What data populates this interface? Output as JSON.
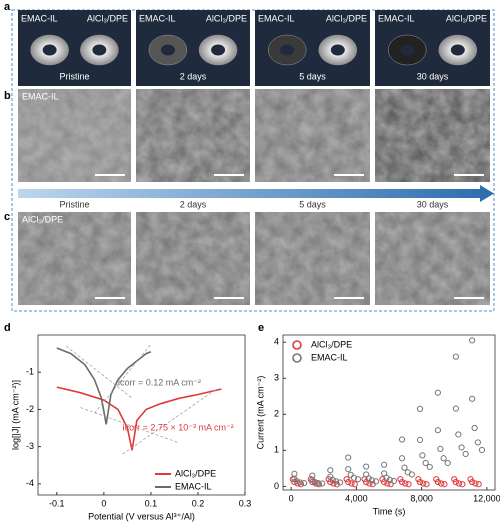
{
  "panel_labels": [
    "a",
    "b",
    "c",
    "d",
    "e"
  ],
  "panel_a": {
    "columns": [
      {
        "left": "EMAC-IL",
        "right": "AlCl₃/DPE",
        "caption": "Pristine"
      },
      {
        "left": "EMAC-IL",
        "right": "AlCl₃/DPE",
        "caption": "2 days"
      },
      {
        "left": "EMAC-IL",
        "right": "AlCl₃/DPE",
        "caption": "5 days"
      },
      {
        "left": "EMAC-IL",
        "right": "AlCl₃/DPE",
        "caption": "30 days"
      }
    ]
  },
  "panel_b": {
    "label": "EMAC-IL"
  },
  "timeline": [
    "Pristine",
    "2 days",
    "5 days",
    "30 days"
  ],
  "panel_c": {
    "label": "AlCl₃/DPE"
  },
  "chart_data": [
    {
      "type": "line",
      "xlabel": "Potential (V versus Al³⁺/Al)",
      "ylabel": "log[|J| (mA cm⁻²)]",
      "xlim": [
        -0.14,
        0.3
      ],
      "xticks": [
        -0.1,
        0,
        0.1,
        0.2,
        0.3
      ],
      "ylim": [
        -4.3,
        0
      ],
      "yticks": [
        -1,
        -2,
        -3,
        -4
      ],
      "legend": "lower right",
      "annotations": [
        "icorr = 0.12 mA cm⁻²",
        "icorr = 2.75 × 10⁻³ mA cm⁻²"
      ],
      "series": [
        {
          "name": "AlCl₃/DPE",
          "color": "#e0383b",
          "x": [
            -0.1,
            -0.05,
            0,
            0.03,
            0.05,
            0.06,
            0.07,
            0.09,
            0.12,
            0.16,
            0.2,
            0.25
          ],
          "values": [
            -1.4,
            -1.55,
            -1.75,
            -2.0,
            -2.5,
            -3.1,
            -2.3,
            -2.0,
            -1.85,
            -1.7,
            -1.6,
            -1.45
          ]
        },
        {
          "name": "EMAC-IL",
          "color": "#6b6b6b",
          "x": [
            -0.1,
            -0.07,
            -0.04,
            -0.02,
            -0.005,
            0.005,
            0.015,
            0.03,
            0.05,
            0.07,
            0.09,
            0.1
          ],
          "values": [
            -0.35,
            -0.5,
            -0.8,
            -1.2,
            -1.7,
            -2.4,
            -1.6,
            -1.2,
            -0.9,
            -0.7,
            -0.5,
            -0.45
          ]
        }
      ]
    },
    {
      "type": "scatter",
      "xlabel": "Time (s)",
      "ylabel": "Current (mA cm⁻²)",
      "xlim": [
        -500,
        12500
      ],
      "xticks": [
        0,
        {
          "value": 4000,
          "label": "4,000"
        },
        {
          "value": 8000,
          "label": "8,000"
        },
        {
          "value": 12000,
          "label": "12,000"
        }
      ],
      "ylim": [
        -0.1,
        4.2
      ],
      "yticks": [
        0,
        1,
        2,
        3,
        4
      ],
      "legend": "upper left",
      "series": [
        {
          "name": "AlCl₃/DPE",
          "color": "#e0383b",
          "x": [
            100,
            200,
            400,
            600,
            1200,
            1300,
            1500,
            1700,
            2300,
            2400,
            2600,
            2800,
            3400,
            3500,
            3700,
            3900,
            4500,
            4600,
            4800,
            5000,
            5600,
            5700,
            5900,
            6100,
            6700,
            6800,
            7000,
            7200,
            7800,
            7900,
            8100,
            8300,
            8900,
            9000,
            9200,
            9400,
            10000,
            10100,
            10300,
            10500,
            11000,
            11100,
            11300,
            11500
          ],
          "values": [
            0.2,
            0.12,
            0.08,
            0.06,
            0.2,
            0.12,
            0.08,
            0.06,
            0.2,
            0.12,
            0.08,
            0.06,
            0.2,
            0.12,
            0.08,
            0.06,
            0.2,
            0.12,
            0.08,
            0.06,
            0.2,
            0.12,
            0.08,
            0.06,
            0.2,
            0.12,
            0.08,
            0.06,
            0.2,
            0.12,
            0.08,
            0.06,
            0.2,
            0.12,
            0.08,
            0.06,
            0.2,
            0.12,
            0.08,
            0.06,
            0.2,
            0.12,
            0.08,
            0.06
          ]
        },
        {
          "name": "EMAC-IL",
          "color": "#777777",
          "x": [
            200,
            200,
            350,
            550,
            800,
            1300,
            1300,
            1450,
            1650,
            1900,
            2400,
            2400,
            2550,
            2750,
            3000,
            3500,
            3500,
            3650,
            3850,
            4100,
            4600,
            4600,
            4750,
            4950,
            5200,
            5700,
            5700,
            5850,
            6050,
            6300,
            6800,
            6800,
            6950,
            7150,
            7400,
            7900,
            7900,
            8050,
            8250,
            8500,
            9000,
            9000,
            9150,
            9350,
            9600,
            10100,
            10100,
            10250,
            10450,
            10700,
            11100,
            11100,
            11250,
            11450,
            11700
          ],
          "values": [
            0.35,
            0.21,
            0.14,
            0.11,
            0.09,
            0.3,
            0.18,
            0.12,
            0.09,
            0.08,
            0.45,
            0.27,
            0.18,
            0.14,
            0.11,
            0.8,
            0.48,
            0.32,
            0.24,
            0.2,
            0.55,
            0.33,
            0.22,
            0.17,
            0.14,
            0.6,
            0.36,
            0.24,
            0.18,
            0.15,
            1.3,
            0.78,
            0.52,
            0.39,
            0.33,
            2.15,
            1.29,
            0.86,
            0.65,
            0.54,
            2.6,
            1.56,
            1.04,
            0.78,
            0.65,
            3.6,
            2.16,
            1.44,
            1.08,
            0.9,
            4.05,
            2.43,
            1.62,
            1.22,
            1.01
          ]
        }
      ]
    }
  ]
}
